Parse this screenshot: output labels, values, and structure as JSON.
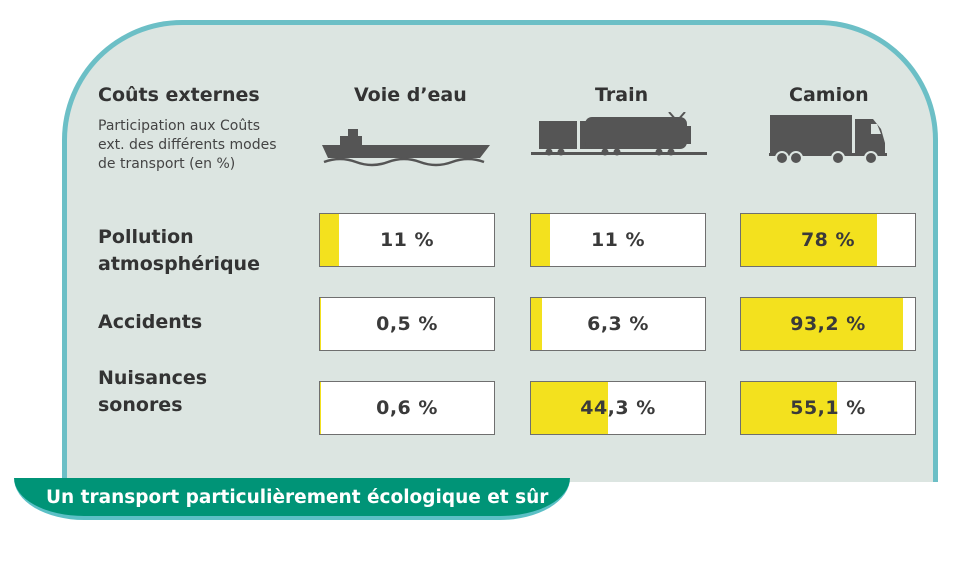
{
  "header": {
    "title": "Coûts externes",
    "subtitle_lines": [
      "Participation aux Coûts",
      "ext. des différents modes",
      "de transport (en %)"
    ]
  },
  "modes": [
    {
      "label": "Voie d’eau",
      "icon": "barge-icon"
    },
    {
      "label": "Train",
      "icon": "train-icon"
    },
    {
      "label": "Camion",
      "icon": "truck-icon"
    }
  ],
  "rows": [
    {
      "label_lines": [
        "Pollution",
        "atmosphérique"
      ]
    },
    {
      "label_lines": [
        "Accidents"
      ]
    },
    {
      "label_lines": [
        "Nuisances",
        "sonores"
      ]
    }
  ],
  "cells": [
    [
      {
        "text": "11 %"
      },
      {
        "text": "11 %"
      },
      {
        "text": "78 %"
      }
    ],
    [
      {
        "text": "0,5 %"
      },
      {
        "text": "6,3 %"
      },
      {
        "text": "93,2 %"
      }
    ],
    [
      {
        "text": "0,6 %"
      },
      {
        "text": "44,3 %"
      },
      {
        "text": "55,1 %"
      }
    ]
  ],
  "banner": "Un transport particulièrement écologique et sûr",
  "colors": {
    "fill": "#f3e11e",
    "panel": "#dce5e1",
    "border": "#6cbfc6",
    "banner": "#009477",
    "icon": "#555555"
  },
  "chart_data": {
    "type": "table",
    "title": "Coûts externes",
    "subtitle": "Participation aux Coûts ext. des différents modes de transport (en %)",
    "categories": [
      "Pollution atmosphérique",
      "Accidents",
      "Nuisances sonores"
    ],
    "series": [
      {
        "name": "Voie d’eau",
        "values": [
          11,
          0.5,
          0.6
        ]
      },
      {
        "name": "Train",
        "values": [
          11,
          6.3,
          44.3
        ]
      },
      {
        "name": "Camion",
        "values": [
          78,
          93.2,
          55.1
        ]
      }
    ],
    "ylim": [
      0,
      100
    ]
  }
}
